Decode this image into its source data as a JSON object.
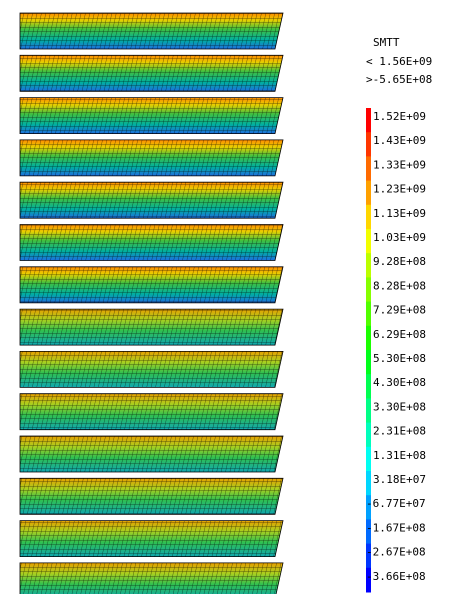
{
  "legend": {
    "title": "SMTT",
    "max_label": "< 1.56E+09",
    "min_label": ">-5.65E+08",
    "levels": [
      "1.52E+09",
      "1.43E+09",
      "1.33E+09",
      "1.23E+09",
      "1.13E+09",
      "1.03E+09",
      "9.28E+08",
      "8.28E+08",
      "7.29E+08",
      "6.29E+08",
      "5.30E+08",
      "4.30E+08",
      "3.30E+08",
      "2.31E+08",
      "1.31E+08",
      "3.18E+07",
      "-6.77E+07",
      "-1.67E+08",
      "-2.67E+08",
      "-3.66E+08"
    ]
  }
}
